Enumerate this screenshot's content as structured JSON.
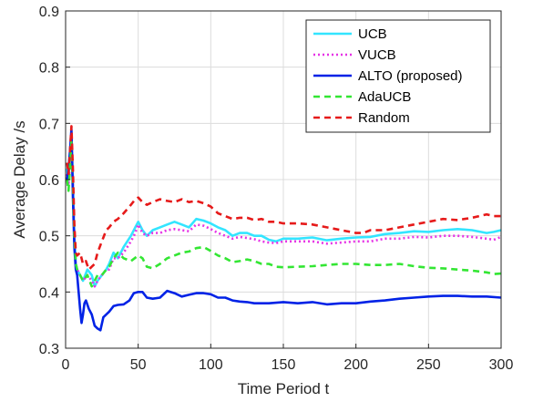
{
  "chart_data": {
    "type": "line",
    "xlabel": "Time Period t",
    "ylabel": "Average Delay /s",
    "xlim": [
      0,
      300
    ],
    "ylim": [
      0.3,
      0.9
    ],
    "xticks": [
      0,
      50,
      100,
      150,
      200,
      250,
      300
    ],
    "yticks": [
      0.3,
      0.4,
      0.5,
      0.6,
      0.7,
      0.8,
      0.9
    ],
    "x_tick_labels": [
      "0",
      "50",
      "100",
      "150",
      "200",
      "250",
      "300"
    ],
    "y_tick_labels": [
      "0.3",
      "0.4",
      "0.5",
      "0.6",
      "0.7",
      "0.8",
      "0.9"
    ],
    "grid": true,
    "legend_position": "top-right",
    "series": [
      {
        "name": "UCB",
        "color": "#33e5ff",
        "style": "solid",
        "points": [
          [
            1,
            0.62
          ],
          [
            2,
            0.6
          ],
          [
            3,
            0.64
          ],
          [
            4,
            0.68
          ],
          [
            5,
            0.6
          ],
          [
            6,
            0.5
          ],
          [
            7,
            0.45
          ],
          [
            8,
            0.44
          ],
          [
            10,
            0.43
          ],
          [
            12,
            0.42
          ],
          [
            15,
            0.44
          ],
          [
            18,
            0.43
          ],
          [
            20,
            0.41
          ],
          [
            22,
            0.42
          ],
          [
            25,
            0.43
          ],
          [
            28,
            0.44
          ],
          [
            30,
            0.45
          ],
          [
            33,
            0.47
          ],
          [
            36,
            0.46
          ],
          [
            40,
            0.48
          ],
          [
            45,
            0.5
          ],
          [
            48,
            0.515
          ],
          [
            50,
            0.525
          ],
          [
            53,
            0.51
          ],
          [
            56,
            0.5
          ],
          [
            60,
            0.51
          ],
          [
            65,
            0.515
          ],
          [
            70,
            0.52
          ],
          [
            75,
            0.525
          ],
          [
            80,
            0.52
          ],
          [
            85,
            0.515
          ],
          [
            90,
            0.53
          ],
          [
            95,
            0.527
          ],
          [
            100,
            0.522
          ],
          [
            105,
            0.515
          ],
          [
            110,
            0.51
          ],
          [
            115,
            0.5
          ],
          [
            120,
            0.505
          ],
          [
            125,
            0.505
          ],
          [
            130,
            0.5
          ],
          [
            135,
            0.5
          ],
          [
            140,
            0.493
          ],
          [
            145,
            0.49
          ],
          [
            150,
            0.495
          ],
          [
            160,
            0.495
          ],
          [
            170,
            0.497
          ],
          [
            180,
            0.492
          ],
          [
            190,
            0.495
          ],
          [
            200,
            0.497
          ],
          [
            210,
            0.498
          ],
          [
            220,
            0.503
          ],
          [
            230,
            0.505
          ],
          [
            240,
            0.508
          ],
          [
            250,
            0.507
          ],
          [
            260,
            0.51
          ],
          [
            270,
            0.512
          ],
          [
            280,
            0.51
          ],
          [
            290,
            0.505
          ],
          [
            295,
            0.507
          ],
          [
            300,
            0.51
          ]
        ]
      },
      {
        "name": "VUCB",
        "color": "#e633e6",
        "style": "dotted",
        "points": [
          [
            1,
            0.61
          ],
          [
            2,
            0.59
          ],
          [
            3,
            0.63
          ],
          [
            4,
            0.67
          ],
          [
            5,
            0.6
          ],
          [
            6,
            0.5
          ],
          [
            7,
            0.45
          ],
          [
            8,
            0.44
          ],
          [
            10,
            0.43
          ],
          [
            12,
            0.42
          ],
          [
            15,
            0.43
          ],
          [
            18,
            0.42
          ],
          [
            20,
            0.41
          ],
          [
            22,
            0.42
          ],
          [
            25,
            0.43
          ],
          [
            28,
            0.44
          ],
          [
            30,
            0.44
          ],
          [
            33,
            0.46
          ],
          [
            36,
            0.46
          ],
          [
            40,
            0.47
          ],
          [
            45,
            0.49
          ],
          [
            48,
            0.505
          ],
          [
            50,
            0.52
          ],
          [
            53,
            0.505
          ],
          [
            56,
            0.5
          ],
          [
            60,
            0.505
          ],
          [
            65,
            0.505
          ],
          [
            70,
            0.51
          ],
          [
            75,
            0.512
          ],
          [
            80,
            0.51
          ],
          [
            85,
            0.508
          ],
          [
            90,
            0.52
          ],
          [
            95,
            0.518
          ],
          [
            100,
            0.512
          ],
          [
            105,
            0.505
          ],
          [
            110,
            0.5
          ],
          [
            115,
            0.495
          ],
          [
            120,
            0.498
          ],
          [
            125,
            0.496
          ],
          [
            130,
            0.494
          ],
          [
            135,
            0.49
          ],
          [
            140,
            0.488
          ],
          [
            145,
            0.487
          ],
          [
            150,
            0.49
          ],
          [
            160,
            0.49
          ],
          [
            170,
            0.49
          ],
          [
            180,
            0.486
          ],
          [
            190,
            0.488
          ],
          [
            200,
            0.49
          ],
          [
            210,
            0.49
          ],
          [
            220,
            0.495
          ],
          [
            230,
            0.495
          ],
          [
            240,
            0.498
          ],
          [
            250,
            0.497
          ],
          [
            260,
            0.5
          ],
          [
            270,
            0.5
          ],
          [
            280,
            0.498
          ],
          [
            290,
            0.495
          ],
          [
            295,
            0.493
          ],
          [
            300,
            0.498
          ]
        ]
      },
      {
        "name": "ALTO (proposed)",
        "color": "#0022e6",
        "style": "solid",
        "points": [
          [
            1,
            0.6
          ],
          [
            2,
            0.62
          ],
          [
            3,
            0.65
          ],
          [
            4,
            0.69
          ],
          [
            5,
            0.57
          ],
          [
            6,
            0.48
          ],
          [
            7,
            0.44
          ],
          [
            8,
            0.43
          ],
          [
            9,
            0.4
          ],
          [
            10,
            0.37
          ],
          [
            11,
            0.345
          ],
          [
            12,
            0.36
          ],
          [
            13,
            0.38
          ],
          [
            14,
            0.385
          ],
          [
            16,
            0.37
          ],
          [
            18,
            0.36
          ],
          [
            20,
            0.34
          ],
          [
            22,
            0.335
          ],
          [
            24,
            0.332
          ],
          [
            26,
            0.355
          ],
          [
            28,
            0.36
          ],
          [
            30,
            0.365
          ],
          [
            33,
            0.375
          ],
          [
            36,
            0.377
          ],
          [
            40,
            0.378
          ],
          [
            44,
            0.385
          ],
          [
            47,
            0.398
          ],
          [
            50,
            0.4
          ],
          [
            53,
            0.4
          ],
          [
            56,
            0.39
          ],
          [
            60,
            0.388
          ],
          [
            65,
            0.39
          ],
          [
            70,
            0.402
          ],
          [
            75,
            0.398
          ],
          [
            80,
            0.392
          ],
          [
            85,
            0.395
          ],
          [
            90,
            0.398
          ],
          [
            95,
            0.398
          ],
          [
            100,
            0.396
          ],
          [
            105,
            0.39
          ],
          [
            110,
            0.39
          ],
          [
            115,
            0.385
          ],
          [
            120,
            0.383
          ],
          [
            125,
            0.382
          ],
          [
            130,
            0.38
          ],
          [
            140,
            0.38
          ],
          [
            150,
            0.382
          ],
          [
            160,
            0.38
          ],
          [
            170,
            0.382
          ],
          [
            180,
            0.378
          ],
          [
            190,
            0.38
          ],
          [
            200,
            0.38
          ],
          [
            210,
            0.383
          ],
          [
            220,
            0.385
          ],
          [
            230,
            0.388
          ],
          [
            240,
            0.39
          ],
          [
            250,
            0.392
          ],
          [
            260,
            0.393
          ],
          [
            270,
            0.393
          ],
          [
            280,
            0.392
          ],
          [
            290,
            0.392
          ],
          [
            300,
            0.39
          ]
        ]
      },
      {
        "name": "AdaUCB",
        "color": "#33e633",
        "style": "dashed",
        "points": [
          [
            1,
            0.6
          ],
          [
            2,
            0.58
          ],
          [
            3,
            0.62
          ],
          [
            4,
            0.67
          ],
          [
            5,
            0.59
          ],
          [
            6,
            0.5
          ],
          [
            7,
            0.45
          ],
          [
            8,
            0.44
          ],
          [
            10,
            0.43
          ],
          [
            12,
            0.42
          ],
          [
            15,
            0.43
          ],
          [
            18,
            0.41
          ],
          [
            20,
            0.42
          ],
          [
            22,
            0.43
          ],
          [
            25,
            0.43
          ],
          [
            28,
            0.44
          ],
          [
            30,
            0.445
          ],
          [
            33,
            0.46
          ],
          [
            36,
            0.47
          ],
          [
            40,
            0.46
          ],
          [
            45,
            0.455
          ],
          [
            50,
            0.465
          ],
          [
            53,
            0.46
          ],
          [
            56,
            0.445
          ],
          [
            60,
            0.442
          ],
          [
            65,
            0.45
          ],
          [
            70,
            0.46
          ],
          [
            75,
            0.465
          ],
          [
            80,
            0.47
          ],
          [
            85,
            0.472
          ],
          [
            90,
            0.478
          ],
          [
            95,
            0.48
          ],
          [
            100,
            0.473
          ],
          [
            105,
            0.465
          ],
          [
            110,
            0.46
          ],
          [
            115,
            0.453
          ],
          [
            120,
            0.455
          ],
          [
            125,
            0.458
          ],
          [
            130,
            0.455
          ],
          [
            135,
            0.45
          ],
          [
            140,
            0.45
          ],
          [
            145,
            0.445
          ],
          [
            150,
            0.444
          ],
          [
            160,
            0.445
          ],
          [
            170,
            0.446
          ],
          [
            180,
            0.448
          ],
          [
            190,
            0.45
          ],
          [
            200,
            0.45
          ],
          [
            210,
            0.448
          ],
          [
            220,
            0.448
          ],
          [
            230,
            0.45
          ],
          [
            240,
            0.446
          ],
          [
            250,
            0.443
          ],
          [
            260,
            0.442
          ],
          [
            270,
            0.44
          ],
          [
            280,
            0.438
          ],
          [
            290,
            0.435
          ],
          [
            295,
            0.432
          ],
          [
            300,
            0.433
          ]
        ]
      },
      {
        "name": "Random",
        "color": "#e61a1a",
        "style": "dashed",
        "points": [
          [
            1,
            0.63
          ],
          [
            2,
            0.61
          ],
          [
            3,
            0.65
          ],
          [
            4,
            0.695
          ],
          [
            5,
            0.62
          ],
          [
            6,
            0.52
          ],
          [
            7,
            0.47
          ],
          [
            8,
            0.465
          ],
          [
            10,
            0.47
          ],
          [
            12,
            0.45
          ],
          [
            14,
            0.455
          ],
          [
            16,
            0.44
          ],
          [
            18,
            0.445
          ],
          [
            20,
            0.45
          ],
          [
            22,
            0.47
          ],
          [
            25,
            0.49
          ],
          [
            28,
            0.51
          ],
          [
            30,
            0.515
          ],
          [
            33,
            0.525
          ],
          [
            36,
            0.53
          ],
          [
            40,
            0.54
          ],
          [
            45,
            0.555
          ],
          [
            48,
            0.565
          ],
          [
            50,
            0.568
          ],
          [
            53,
            0.56
          ],
          [
            56,
            0.555
          ],
          [
            60,
            0.56
          ],
          [
            65,
            0.565
          ],
          [
            70,
            0.562
          ],
          [
            75,
            0.56
          ],
          [
            80,
            0.565
          ],
          [
            85,
            0.56
          ],
          [
            90,
            0.562
          ],
          [
            95,
            0.558
          ],
          [
            100,
            0.552
          ],
          [
            105,
            0.54
          ],
          [
            110,
            0.535
          ],
          [
            115,
            0.53
          ],
          [
            120,
            0.532
          ],
          [
            125,
            0.532
          ],
          [
            130,
            0.528
          ],
          [
            135,
            0.53
          ],
          [
            140,
            0.525
          ],
          [
            145,
            0.525
          ],
          [
            150,
            0.522
          ],
          [
            160,
            0.522
          ],
          [
            170,
            0.52
          ],
          [
            180,
            0.515
          ],
          [
            190,
            0.51
          ],
          [
            200,
            0.505
          ],
          [
            205,
            0.505
          ],
          [
            210,
            0.51
          ],
          [
            220,
            0.51
          ],
          [
            230,
            0.515
          ],
          [
            240,
            0.52
          ],
          [
            250,
            0.525
          ],
          [
            260,
            0.53
          ],
          [
            270,
            0.528
          ],
          [
            280,
            0.532
          ],
          [
            290,
            0.538
          ],
          [
            295,
            0.535
          ],
          [
            300,
            0.535
          ]
        ]
      }
    ]
  }
}
